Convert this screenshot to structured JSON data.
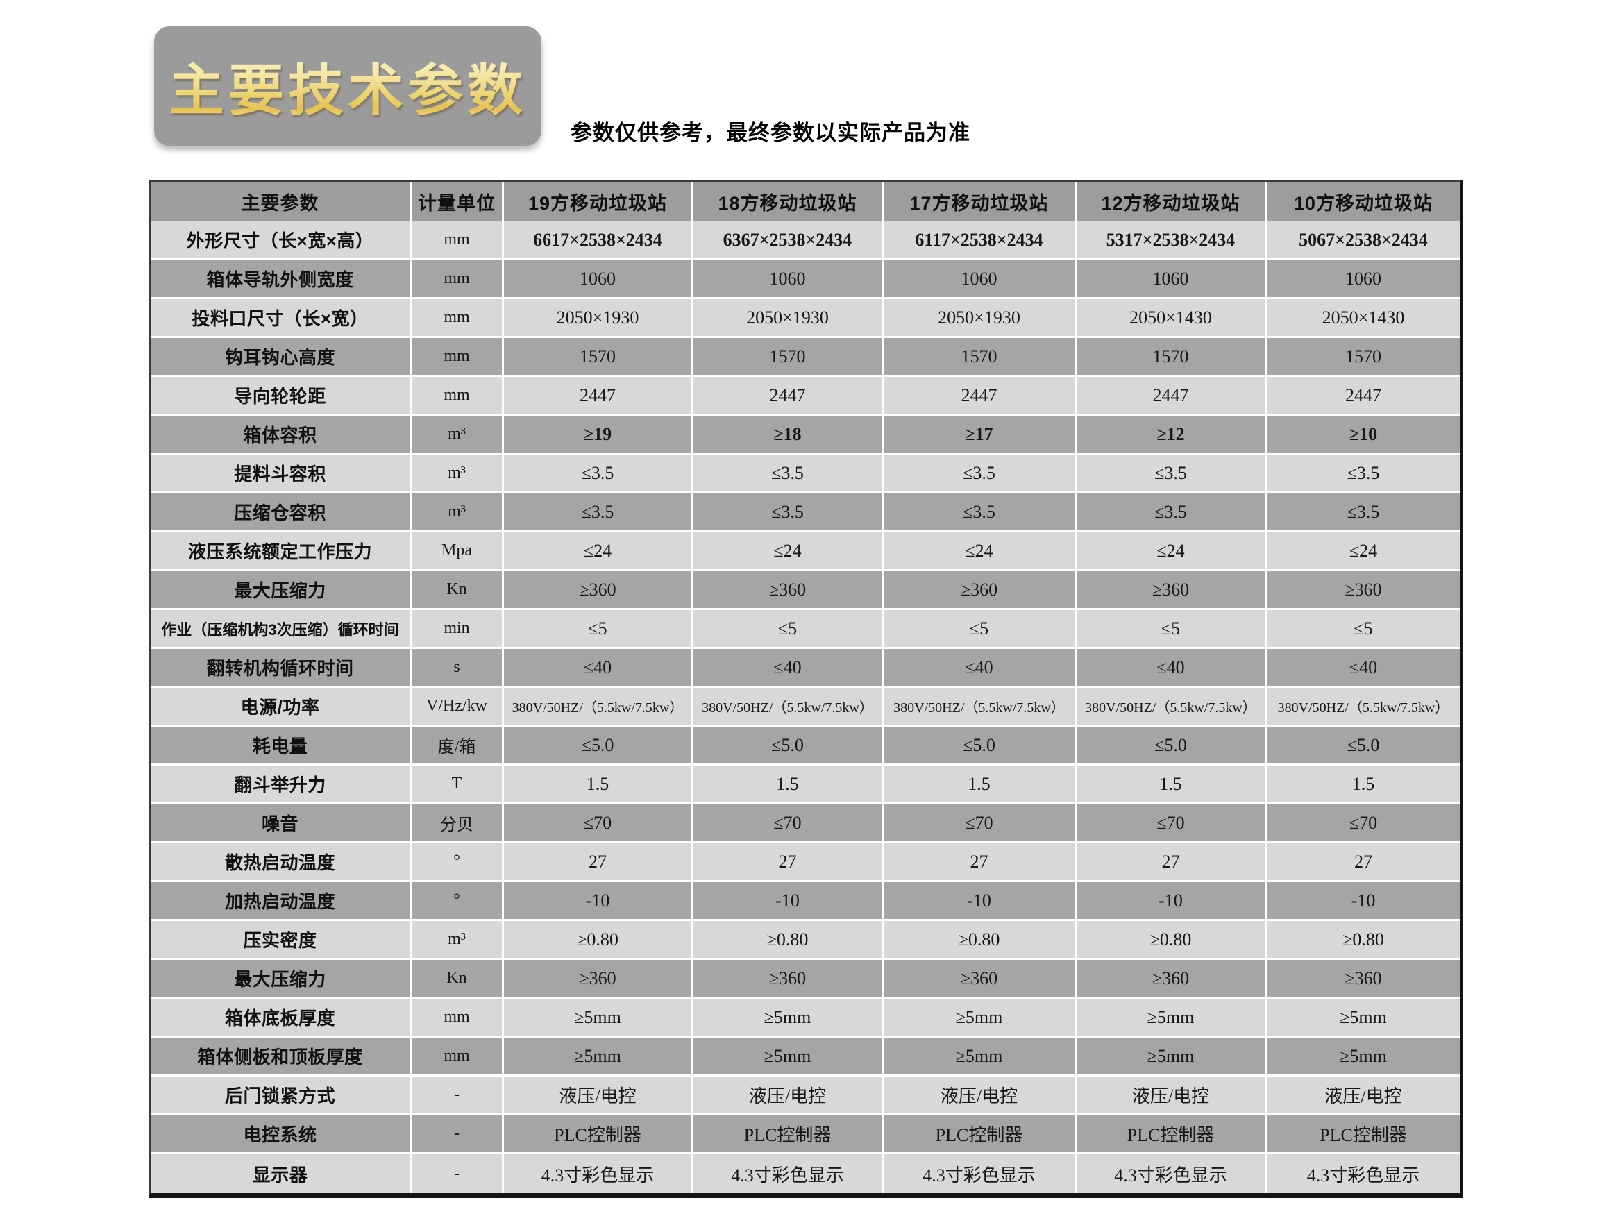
{
  "header": {
    "title": "主要技术参数",
    "disclaimer": "参数仅供参考，最终参数以实际产品为准"
  },
  "table": {
    "columns": [
      "主要参数",
      "计量单位",
      "19方移动垃圾站",
      "18方移动垃圾站",
      "17方移动垃圾站",
      "12方移动垃圾站",
      "10方移动垃圾站"
    ],
    "rows": [
      {
        "param": "外形尺寸（长×宽×高）",
        "unit": "mm",
        "values": [
          "6617×2538×2434",
          "6367×2538×2434",
          "6117×2538×2434",
          "5317×2538×2434",
          "5067×2538×2434"
        ]
      },
      {
        "param": "箱体导轨外侧宽度",
        "unit": "mm",
        "values": [
          "1060",
          "1060",
          "1060",
          "1060",
          "1060"
        ]
      },
      {
        "param": "投料口尺寸（长×宽）",
        "unit": "mm",
        "values": [
          "2050×1930",
          "2050×1930",
          "2050×1930",
          "2050×1430",
          "2050×1430"
        ]
      },
      {
        "param": "钩耳钩心高度",
        "unit": "mm",
        "values": [
          "1570",
          "1570",
          "1570",
          "1570",
          "1570"
        ]
      },
      {
        "param": "导向轮轮距",
        "unit": "mm",
        "values": [
          "2447",
          "2447",
          "2447",
          "2447",
          "2447"
        ]
      },
      {
        "param": "箱体容积",
        "unit": "m³",
        "values": [
          "≥19",
          "≥18",
          "≥17",
          "≥12",
          "≥10"
        ]
      },
      {
        "param": "提料斗容积",
        "unit": "m³",
        "values": [
          "≤3.5",
          "≤3.5",
          "≤3.5",
          "≤3.5",
          "≤3.5"
        ]
      },
      {
        "param": "压缩仓容积",
        "unit": "m³",
        "values": [
          "≤3.5",
          "≤3.5",
          "≤3.5",
          "≤3.5",
          "≤3.5"
        ]
      },
      {
        "param": "液压系统额定工作压力",
        "unit": "Mpa",
        "values": [
          "≤24",
          "≤24",
          "≤24",
          "≤24",
          "≤24"
        ]
      },
      {
        "param": "最大压缩力",
        "unit": "Kn",
        "values": [
          "≥360",
          "≥360",
          "≥360",
          "≥360",
          "≥360"
        ]
      },
      {
        "param": "作业（压缩机构3次压缩）循环时间",
        "unit": "min",
        "values": [
          "≤5",
          "≤5",
          "≤5",
          "≤5",
          "≤5"
        ]
      },
      {
        "param": "翻转机构循环时间",
        "unit": "s",
        "values": [
          "≤40",
          "≤40",
          "≤40",
          "≤40",
          "≤40"
        ]
      },
      {
        "param": "电源/功率",
        "unit": "V/Hz/kw",
        "values": [
          "380V/50HZ/（5.5kw/7.5kw）",
          "380V/50HZ/（5.5kw/7.5kw）",
          "380V/50HZ/（5.5kw/7.5kw）",
          "380V/50HZ/（5.5kw/7.5kw）",
          "380V/50HZ/（5.5kw/7.5kw）"
        ]
      },
      {
        "param": "耗电量",
        "unit": "度/箱",
        "values": [
          "≤5.0",
          "≤5.0",
          "≤5.0",
          "≤5.0",
          "≤5.0"
        ]
      },
      {
        "param": "翻斗举升力",
        "unit": "T",
        "values": [
          "1.5",
          "1.5",
          "1.5",
          "1.5",
          "1.5"
        ]
      },
      {
        "param": "噪音",
        "unit": "分贝",
        "values": [
          "≤70",
          "≤70",
          "≤70",
          "≤70",
          "≤70"
        ]
      },
      {
        "param": "散热启动温度",
        "unit": "°",
        "values": [
          "27",
          "27",
          "27",
          "27",
          "27"
        ]
      },
      {
        "param": "加热启动温度",
        "unit": "°",
        "values": [
          "-10",
          "-10",
          "-10",
          "-10",
          "-10"
        ]
      },
      {
        "param": "压实密度",
        "unit": "m³",
        "values": [
          "≥0.80",
          "≥0.80",
          "≥0.80",
          "≥0.80",
          "≥0.80"
        ]
      },
      {
        "param": "最大压缩力",
        "unit": "Kn",
        "values": [
          "≥360",
          "≥360",
          "≥360",
          "≥360",
          "≥360"
        ]
      },
      {
        "param": "箱体底板厚度",
        "unit": "mm",
        "values": [
          "≥5mm",
          "≥5mm",
          "≥5mm",
          "≥5mm",
          "≥5mm"
        ]
      },
      {
        "param": "箱体侧板和顶板厚度",
        "unit": "mm",
        "values": [
          "≥5mm",
          "≥5mm",
          "≥5mm",
          "≥5mm",
          "≥5mm"
        ]
      },
      {
        "param": "后门锁紧方式",
        "unit": "-",
        "values": [
          "液压/电控",
          "液压/电控",
          "液压/电控",
          "液压/电控",
          "液压/电控"
        ]
      },
      {
        "param": "电控系统",
        "unit": "-",
        "values": [
          "PLC控制器",
          "PLC控制器",
          "PLC控制器",
          "PLC控制器",
          "PLC控制器"
        ]
      },
      {
        "param": "显示器",
        "unit": "-",
        "values": [
          "4.3寸彩色显示",
          "4.3寸彩色显示",
          "4.3寸彩色显示",
          "4.3寸彩色显示",
          "4.3寸彩色显示"
        ]
      }
    ],
    "emphasized_value_rows": [
      0,
      5
    ],
    "small_text_rows": [
      12
    ]
  },
  "colors": {
    "title_gold_light": "#f9f1c4",
    "title_gold_dark": "#e6c254",
    "title_panel_gray": "#9b9b9b",
    "table_header_gray": "#9d9d9d",
    "row_dark_gray": "#a5a5a5",
    "row_light_gray": "#d8d8d8",
    "cell_divider": "#ffffff",
    "outer_border": "#141414",
    "text": "#101010"
  }
}
